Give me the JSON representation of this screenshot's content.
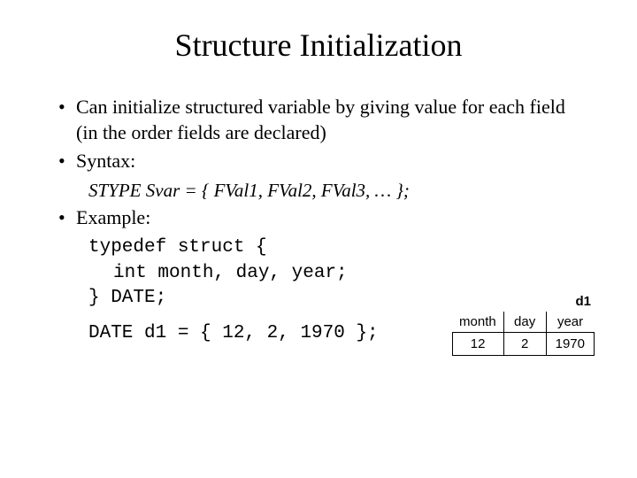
{
  "title": "Structure Initialization",
  "bullets": {
    "b1": "Can initialize structured variable by giving value for each field (in the order fields are declared)",
    "b2": "Syntax:",
    "b3": "Example:"
  },
  "syntax": "STYPE Svar = { FVal1, FVal2, FVal3, … };",
  "code": {
    "line1": "typedef struct {",
    "line2": "int month, day, year;",
    "line3": "} DATE;",
    "line4": "DATE d1 = { 12, 2, 1970 };"
  },
  "diagram": {
    "label": "d1",
    "headers": [
      "month",
      "day",
      "year"
    ],
    "values": [
      "12",
      "2",
      "1970"
    ],
    "col_widths": [
      "58px",
      "48px",
      "52px"
    ],
    "border_color": "#000000",
    "font_family": "Arial",
    "label_fontsize": 15,
    "cell_fontsize": 15
  },
  "colors": {
    "background": "#ffffff",
    "text": "#000000"
  },
  "typography": {
    "title_fontsize": 36,
    "body_fontsize": 22,
    "code_fontsize": 21,
    "body_font": "Times New Roman",
    "code_font": "Courier New"
  }
}
